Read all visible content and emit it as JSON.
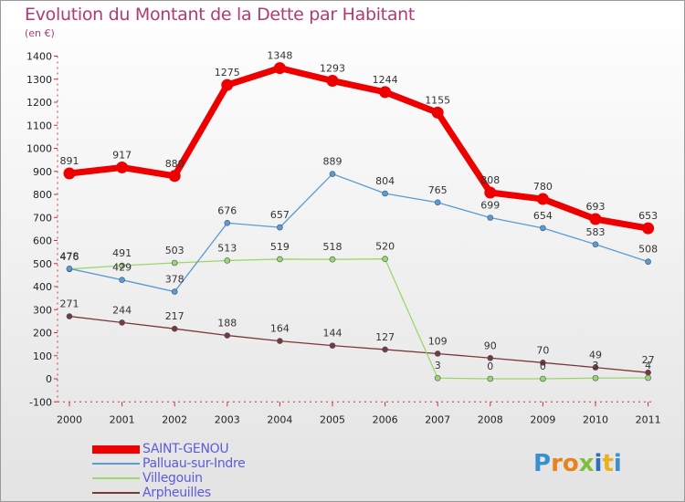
{
  "title": "Evolution du Montant de la Dette par Habitant",
  "unit": "(en €)",
  "logo_text": "Proxiti",
  "chart_data": {
    "type": "line",
    "title": "Evolution du Montant de la Dette par Habitant",
    "ylabel": "(en €)",
    "xlabel": "",
    "x": [
      "2000",
      "2001",
      "2002",
      "2003",
      "2004",
      "2005",
      "2006",
      "2007",
      "2008",
      "2009",
      "2010",
      "2011"
    ],
    "ylim": [
      -100,
      1400
    ],
    "yticks": [
      -100,
      0,
      100,
      200,
      300,
      400,
      500,
      600,
      700,
      800,
      900,
      1000,
      1100,
      1200,
      1300,
      1400
    ],
    "grid": false,
    "legend_position": "bottom-left",
    "series": [
      {
        "name": "SAINT-GENOU",
        "color": "#ee0000",
        "values": [
          891,
          917,
          880,
          1275,
          1348,
          1293,
          1244,
          1155,
          808,
          780,
          693,
          653
        ]
      },
      {
        "name": "Palluau-sur-Indre",
        "color": "#5a9bd0",
        "values": [
          478,
          429,
          378,
          676,
          657,
          889,
          804,
          765,
          699,
          654,
          583,
          508
        ]
      },
      {
        "name": "Villegouin",
        "color": "#9ad86a",
        "values": [
          476,
          491,
          503,
          513,
          519,
          518,
          520,
          3,
          0,
          0,
          3,
          4
        ]
      },
      {
        "name": "Arpheuilles",
        "color": "#7a3838",
        "values": [
          271,
          244,
          217,
          188,
          164,
          144,
          127,
          109,
          90,
          70,
          49,
          27
        ]
      }
    ]
  }
}
